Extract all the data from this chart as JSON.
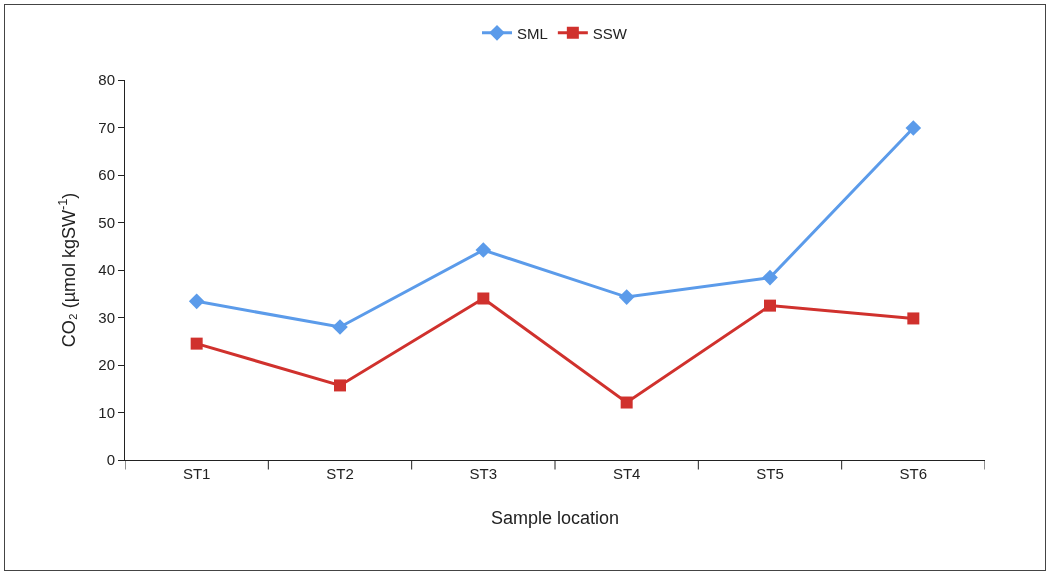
{
  "chart_data": {
    "type": "line",
    "xlabel": "Sample location",
    "ylabel": "CO₂ (µmol kgSW$^{-1}$)",
    "categories": [
      "ST1",
      "ST2",
      "ST3",
      "ST4",
      "ST5",
      "ST6"
    ],
    "series": [
      {
        "name": "SML",
        "color": "#5b9bea",
        "marker": "diamond",
        "values": [
          33.4,
          28.0,
          44.2,
          34.3,
          38.4,
          69.9
        ]
      },
      {
        "name": "SSW",
        "color": "#d0312d",
        "marker": "square",
        "values": [
          24.5,
          15.7,
          34.0,
          12.1,
          32.5,
          29.8
        ]
      }
    ],
    "ylim": [
      0,
      80
    ],
    "yticks": [
      0,
      10,
      20,
      30,
      40,
      50,
      60,
      70,
      80
    ],
    "grid": false,
    "legend": "top",
    "line_style": "solid"
  }
}
